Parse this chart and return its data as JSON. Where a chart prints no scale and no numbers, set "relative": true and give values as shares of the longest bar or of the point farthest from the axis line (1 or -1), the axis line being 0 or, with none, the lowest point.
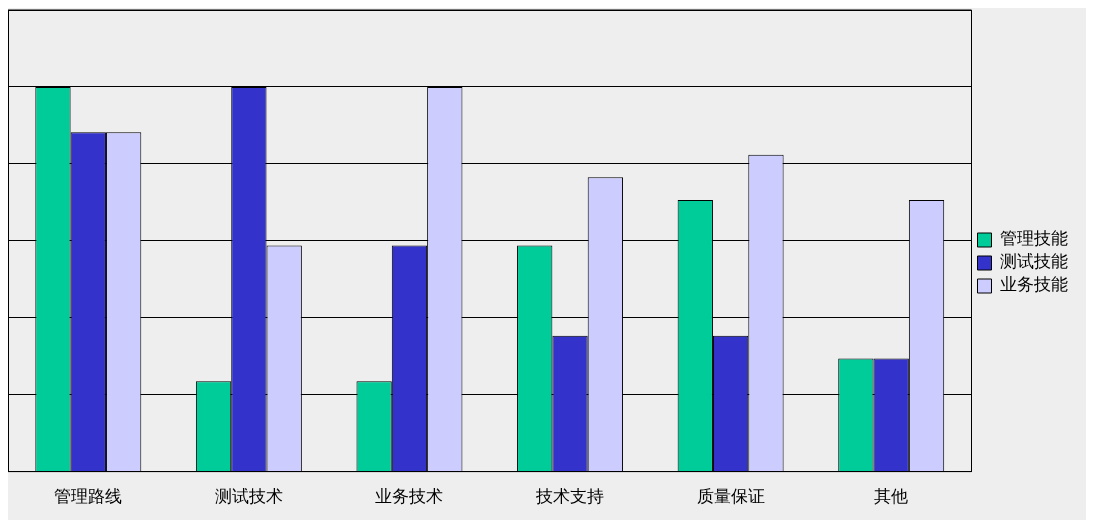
{
  "chart_data": {
    "type": "bar",
    "relative": true,
    "categories": [
      "管理路线",
      "测试技术",
      "业务技术",
      "技术支持",
      "质量保证",
      "其他"
    ],
    "series": [
      {
        "name": "管理技能",
        "color": "#00cc99",
        "values": [
          1,
          0.235,
          0.235,
          0.588,
          0.706,
          0.294
        ]
      },
      {
        "name": "测试技能",
        "color": "#3333cc",
        "values": [
          0.882,
          1,
          0.588,
          0.353,
          0.353,
          0.294
        ]
      },
      {
        "name": "业务技能",
        "color": "#ccccff",
        "values": [
          0.882,
          0.588,
          1,
          0.765,
          0.824,
          0.706
        ]
      }
    ],
    "grid": "y",
    "legend": "right"
  }
}
